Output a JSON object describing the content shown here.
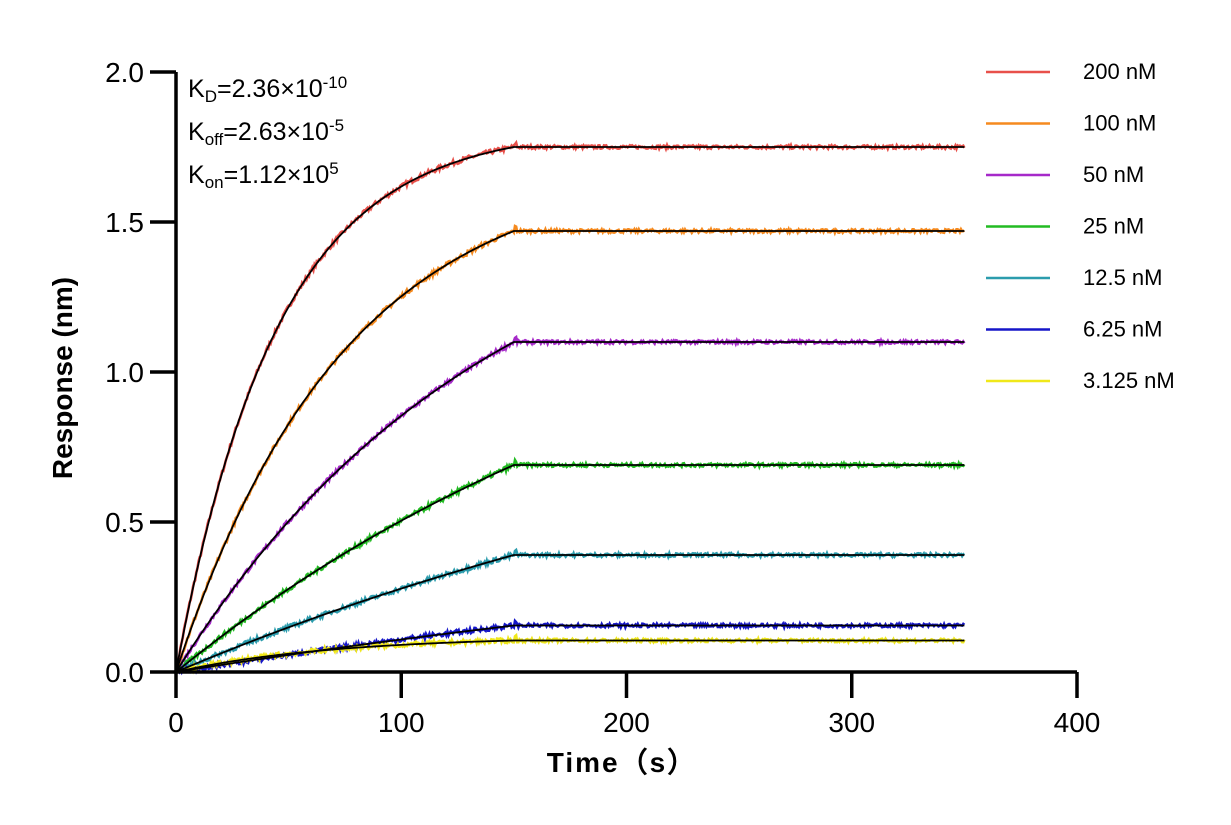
{
  "chart_data": {
    "type": "line",
    "xlabel": "Time（s）",
    "ylabel": "Response (nm)",
    "xlim": [
      0,
      400
    ],
    "ylim": [
      0,
      2.0
    ],
    "x_ticks": [
      "0",
      "100",
      "200",
      "300",
      "400"
    ],
    "y_ticks": [
      "0.0",
      "0.5",
      "1.0",
      "1.5",
      "2.0"
    ],
    "grid": false,
    "legend_position": "right",
    "association_end_s": 150,
    "end_time_s": 350,
    "fit_color": "#000000",
    "kinetics": {
      "kd": {
        "sym": "K",
        "sub": "D",
        "mant": "=2.36×10",
        "exp": "-10"
      },
      "koff": {
        "sym": "K",
        "sub": "off",
        "mant": "=2.63×10",
        "exp": "-5"
      },
      "kon": {
        "sym": "K",
        "sub": "on",
        "mant": "=1.12×10",
        "exp": "5"
      }
    },
    "series": [
      {
        "name": "200 nM",
        "color": "#e8504a",
        "plateau": 1.75,
        "tau": 45
      },
      {
        "name": "100 nM",
        "color": "#f58a1f",
        "plateau": 1.47,
        "tau": 75
      },
      {
        "name": "50 nM",
        "color": "#a629c9",
        "plateau": 1.1,
        "tau": 140
      },
      {
        "name": "25 nM",
        "color": "#22bb22",
        "plateau": 0.69,
        "tau": 250
      },
      {
        "name": "12.5 nM",
        "color": "#2b9cad",
        "plateau": 0.39,
        "tau": 350
      },
      {
        "name": "6.25 nM",
        "color": "#1616c8",
        "plateau": 0.155,
        "tau": 500
      },
      {
        "name": "3.125 nM",
        "color": "#f0e81a",
        "plateau": 0.105,
        "tau": 70
      }
    ]
  }
}
